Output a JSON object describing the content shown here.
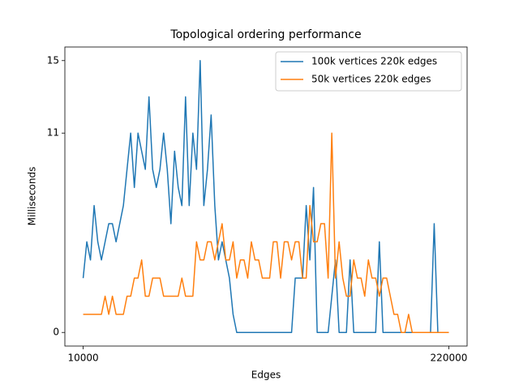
{
  "chart_data": {
    "type": "line",
    "title": "Topological ordering performance",
    "xlabel": "Edges",
    "ylabel": "Milliseconds",
    "x": [
      10000,
      12100,
      14200,
      16300,
      18400,
      20500,
      22600,
      24700,
      26800,
      28900,
      31000,
      33100,
      35200,
      37300,
      39400,
      41500,
      43600,
      45700,
      47800,
      49900,
      52000,
      54100,
      56200,
      58300,
      60400,
      62500,
      64600,
      66700,
      68800,
      70900,
      73000,
      75100,
      77200,
      79300,
      81400,
      83500,
      85600,
      87700,
      89800,
      91900,
      94000,
      96100,
      98200,
      100300,
      102400,
      104500,
      106600,
      108700,
      110800,
      112900,
      115000,
      117100,
      119200,
      121300,
      123400,
      125500,
      127600,
      129700,
      131800,
      133900,
      136000,
      138100,
      140200,
      142300,
      144400,
      146500,
      148600,
      150700,
      152800,
      154900,
      157000,
      159100,
      161200,
      163300,
      165400,
      167500,
      169600,
      171700,
      173800,
      175900,
      178000,
      180100,
      182200,
      184300,
      186400,
      188500,
      190600,
      192700,
      194800,
      196900,
      199000,
      201100,
      203200,
      205300,
      207400,
      209500,
      211600,
      213700,
      215800,
      217900,
      220000
    ],
    "series": [
      {
        "name": "100k vertices 220k edges",
        "color": "#1f77b4",
        "values": [
          3,
          5,
          4,
          7,
          5,
          4,
          5,
          6,
          6,
          5,
          6,
          7,
          9,
          11,
          8,
          11,
          10,
          9,
          13,
          9,
          8,
          9,
          11,
          9,
          6,
          10,
          8,
          7,
          13,
          7,
          11,
          9,
          15,
          7,
          9,
          12,
          7,
          4,
          5,
          4,
          3,
          1,
          0,
          0,
          0,
          0,
          0,
          0,
          0,
          0,
          0,
          0,
          0,
          0,
          0,
          0,
          0,
          0,
          3,
          3,
          3,
          7,
          4,
          8,
          0,
          0,
          0,
          0,
          2,
          4,
          0,
          0,
          0,
          4,
          0,
          0,
          0,
          0,
          0,
          0,
          0,
          5,
          0,
          0,
          0,
          0,
          0,
          0,
          0,
          0,
          0,
          0,
          0,
          0,
          0,
          0,
          6,
          0,
          0,
          0,
          0
        ]
      },
      {
        "name": "50k vertices 220k edges",
        "color": "#ff7f0e",
        "values": [
          1,
          1,
          1,
          1,
          1,
          1,
          2,
          1,
          2,
          1,
          1,
          1,
          2,
          2,
          3,
          3,
          4,
          2,
          2,
          3,
          3,
          3,
          2,
          2,
          2,
          2,
          2,
          3,
          2,
          2,
          2,
          5,
          4,
          4,
          5,
          5,
          4,
          5,
          6,
          4,
          4,
          5,
          3,
          4,
          4,
          3,
          5,
          4,
          4,
          3,
          3,
          3,
          5,
          5,
          3,
          5,
          5,
          4,
          5,
          5,
          3,
          3,
          7,
          5,
          5,
          6,
          6,
          3,
          11,
          3,
          5,
          3,
          2,
          2,
          4,
          3,
          3,
          2,
          4,
          3,
          3,
          2,
          3,
          3,
          2,
          1,
          1,
          0,
          0,
          1,
          0,
          0,
          0,
          0,
          0,
          0,
          0,
          0,
          0,
          0,
          0
        ]
      }
    ],
    "xlim": [
      -500,
      230500
    ],
    "ylim": [
      -0.75,
      15.75
    ],
    "xticks": [
      10000,
      220000
    ],
    "yticks": [
      0,
      11,
      15
    ],
    "legend": "upper right"
  }
}
